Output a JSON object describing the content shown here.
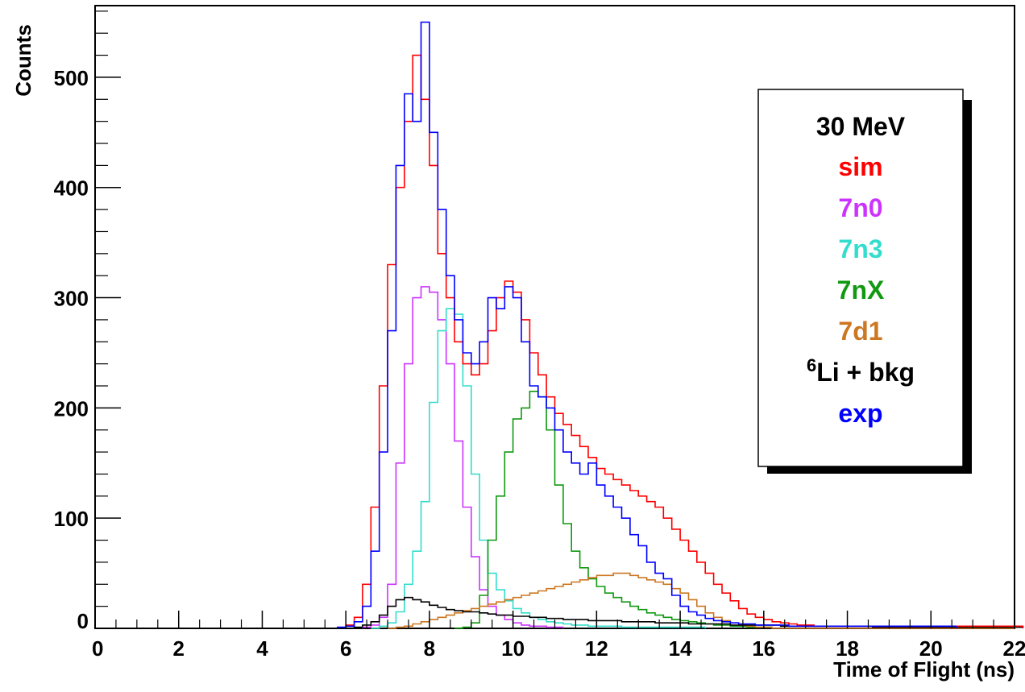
{
  "chart_data": {
    "type": "histogram",
    "xlabel": "Time of Flight (ns)",
    "ylabel": "Counts",
    "xlim": [
      0,
      22
    ],
    "ylim": [
      0,
      565
    ],
    "x_ticks": [
      0,
      2,
      4,
      6,
      8,
      10,
      12,
      14,
      16,
      18,
      20,
      22
    ],
    "y_ticks": [
      0,
      100,
      200,
      300,
      400,
      500
    ],
    "bin_width": 0.2,
    "legend": {
      "title": "30 MeV",
      "position": "top-right",
      "entries": [
        {
          "label": "sim",
          "color": "#ff0000"
        },
        {
          "label": "7n0",
          "color": "#cc33ff"
        },
        {
          "label": "7n3",
          "color": "#33ddcc"
        },
        {
          "label": "7nX",
          "color": "#119911"
        },
        {
          "label": "7d1",
          "color": "#cc7722"
        },
        {
          "label_sup": "6",
          "label": "Li + bkg",
          "color": "#000000"
        },
        {
          "label": "exp",
          "color": "#0000ff"
        }
      ]
    },
    "series": [
      {
        "key": "7n0",
        "color": "#cc33ff",
        "x_start": 6.4,
        "values": [
          1,
          3,
          10,
          40,
          150,
          240,
          300,
          310,
          305,
          280,
          240,
          170,
          110,
          65,
          35,
          20,
          12,
          8,
          5,
          3,
          2,
          2,
          1,
          1
        ]
      },
      {
        "key": "7n3",
        "color": "#33ddcc",
        "x_start": 6.6,
        "values": [
          0,
          2,
          5,
          15,
          40,
          70,
          115,
          205,
          270,
          290,
          285,
          220,
          140,
          80,
          50,
          35,
          25,
          18,
          14,
          10,
          8,
          6,
          5,
          4,
          3,
          3,
          2,
          2,
          2,
          2,
          1,
          1,
          1,
          1,
          1,
          1,
          1,
          1,
          1,
          1
        ]
      },
      {
        "key": "7nX",
        "color": "#119911",
        "x_start": 8.6,
        "values": [
          0,
          1,
          5,
          30,
          80,
          120,
          160,
          190,
          200,
          215,
          210,
          180,
          130,
          95,
          70,
          55,
          45,
          38,
          32,
          28,
          24,
          20,
          17,
          14,
          12,
          10,
          8,
          7,
          6,
          5,
          4,
          3,
          3,
          2,
          2,
          1,
          1,
          1
        ]
      },
      {
        "key": "7d1",
        "color": "#cc7722",
        "x_start": 7.0,
        "values": [
          0,
          1,
          2,
          4,
          6,
          8,
          10,
          12,
          14,
          16,
          18,
          20,
          22,
          24,
          26,
          28,
          30,
          32,
          34,
          36,
          38,
          40,
          42,
          44,
          46,
          48,
          48,
          50,
          50,
          48,
          46,
          44,
          42,
          40,
          36,
          32,
          26,
          20,
          14,
          10,
          7,
          5,
          3,
          2,
          1,
          1,
          0,
          0,
          0,
          0,
          0,
          0,
          0,
          0,
          0,
          0,
          0,
          0,
          0,
          0,
          0,
          0,
          0,
          0,
          0,
          0,
          0,
          0,
          0,
          0,
          0,
          0,
          0,
          0,
          0
        ]
      },
      {
        "key": "6Li + bkg",
        "color": "#000000",
        "x_start": 6.2,
        "values": [
          1,
          3,
          6,
          12,
          20,
          26,
          28,
          26,
          24,
          21,
          19,
          17,
          16,
          15,
          15,
          14,
          13,
          12,
          12,
          11,
          11,
          10,
          10,
          9,
          9,
          8,
          8,
          8,
          7,
          7,
          7,
          7,
          6,
          6,
          6,
          6,
          5,
          5,
          5,
          5,
          4,
          4,
          4,
          4,
          4,
          3,
          3,
          3,
          3,
          3,
          3,
          2,
          2,
          2,
          2,
          2,
          2,
          2,
          2,
          2,
          2,
          2,
          1,
          1,
          1,
          1,
          1,
          1,
          1,
          1,
          1,
          1,
          1,
          1,
          1,
          1,
          1,
          1,
          1,
          1
        ]
      },
      {
        "key": "sim",
        "color": "#ff0000",
        "x_start": 6.0,
        "values": [
          3,
          10,
          40,
          110,
          220,
          330,
          400,
          460,
          520,
          480,
          420,
          340,
          300,
          260,
          240,
          230,
          240,
          270,
          300,
          315,
          305,
          280,
          250,
          230,
          210,
          195,
          185,
          175,
          165,
          155,
          145,
          140,
          135,
          130,
          125,
          120,
          115,
          110,
          100,
          90,
          80,
          70,
          60,
          50,
          40,
          32,
          25,
          18,
          13,
          10,
          8,
          6,
          5,
          4,
          3,
          3,
          2,
          2,
          2,
          2,
          2,
          2,
          2,
          2,
          2,
          2,
          2,
          2,
          2,
          2,
          2,
          2,
          2,
          2,
          2,
          2,
          2,
          2,
          2,
          2,
          2
        ]
      },
      {
        "key": "exp",
        "color": "#0000ff",
        "x_start": 5.8,
        "values": [
          1,
          2,
          6,
          20,
          70,
          160,
          270,
          420,
          485,
          460,
          550,
          450,
          380,
          320,
          280,
          250,
          240,
          260,
          300,
          290,
          310,
          300,
          260,
          220,
          210,
          200,
          180,
          160,
          150,
          140,
          150,
          130,
          120,
          110,
          100,
          85,
          75,
          60,
          50,
          45,
          30,
          20,
          15,
          12,
          9,
          7,
          6,
          5,
          4,
          4,
          3,
          3,
          3,
          3,
          2,
          2,
          2,
          2,
          2,
          2,
          2,
          2,
          2,
          2,
          2,
          2,
          2,
          2,
          2,
          2,
          2,
          2,
          2,
          2
        ]
      }
    ]
  }
}
